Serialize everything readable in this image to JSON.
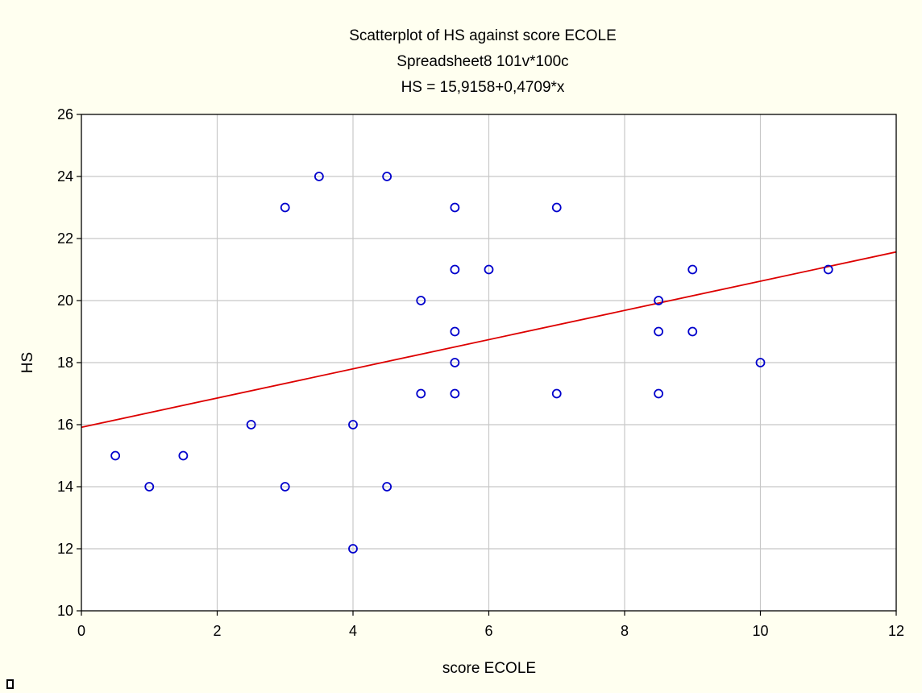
{
  "chart_data": {
    "type": "scatter",
    "title": "Scatterplot of HS against score ECOLE",
    "subtitle": "Spreadsheet8 101v*100c",
    "equation": "HS = 15,9158+0,4709*x",
    "xlabel": "score ECOLE",
    "ylabel": "HS",
    "xlim": [
      0,
      12
    ],
    "ylim": [
      10,
      26
    ],
    "xticks": [
      0,
      2,
      4,
      6,
      8,
      10,
      12
    ],
    "yticks": [
      10,
      12,
      14,
      16,
      18,
      20,
      22,
      24,
      26
    ],
    "grid": true,
    "points": [
      {
        "x": 0.5,
        "y": 15
      },
      {
        "x": 1,
        "y": 14
      },
      {
        "x": 1.5,
        "y": 15
      },
      {
        "x": 2.5,
        "y": 16
      },
      {
        "x": 3,
        "y": 23
      },
      {
        "x": 3,
        "y": 14
      },
      {
        "x": 3.5,
        "y": 24
      },
      {
        "x": 4,
        "y": 16
      },
      {
        "x": 4,
        "y": 12
      },
      {
        "x": 4.5,
        "y": 24
      },
      {
        "x": 4.5,
        "y": 14
      },
      {
        "x": 5,
        "y": 20
      },
      {
        "x": 5,
        "y": 17
      },
      {
        "x": 5.5,
        "y": 23
      },
      {
        "x": 5.5,
        "y": 21
      },
      {
        "x": 5.5,
        "y": 19
      },
      {
        "x": 5.5,
        "y": 18
      },
      {
        "x": 5.5,
        "y": 17
      },
      {
        "x": 6,
        "y": 21
      },
      {
        "x": 7,
        "y": 23
      },
      {
        "x": 7,
        "y": 17
      },
      {
        "x": 8.5,
        "y": 20
      },
      {
        "x": 8.5,
        "y": 19
      },
      {
        "x": 8.5,
        "y": 17
      },
      {
        "x": 9,
        "y": 21
      },
      {
        "x": 9,
        "y": 19
      },
      {
        "x": 10,
        "y": 18
      },
      {
        "x": 11,
        "y": 21
      }
    ],
    "regression": {
      "intercept": 15.9158,
      "slope": 0.4709
    },
    "colors": {
      "points": "#0000cc",
      "regression_line": "#dd0000",
      "grid": "#c8c8c8",
      "plot_background": "#ffffff",
      "page_background": "#fffff0"
    }
  }
}
